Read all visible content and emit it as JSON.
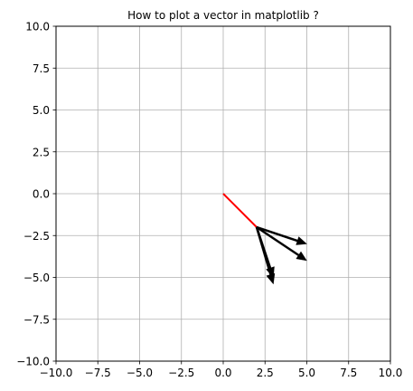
{
  "chart_data": {
    "type": "quiver",
    "title": "How to plot a vector in matplotlib ?",
    "xlabel": "",
    "ylabel": "",
    "xlim": [
      -10,
      10
    ],
    "ylim": [
      -10,
      10
    ],
    "grid": true,
    "x_ticks": [
      -10,
      -7.5,
      -5,
      -2.5,
      0,
      2.5,
      5,
      7.5,
      10
    ],
    "x_tick_labels": [
      "−10.0",
      "−7.5",
      "−5.0",
      "−2.5",
      "0.0",
      "2.5",
      "5.0",
      "7.5",
      "10.0"
    ],
    "y_ticks": [
      10,
      7.5,
      5,
      2.5,
      0,
      -2.5,
      -5,
      -7.5,
      -10
    ],
    "y_tick_labels": [
      "10.0",
      "7.5",
      "5.0",
      "2.5",
      "0.0",
      "−2.5",
      "−5.0",
      "−7.5",
      "−10.0"
    ],
    "line": {
      "x": [
        0,
        2
      ],
      "y": [
        0,
        -2
      ],
      "color": "#ff0000"
    },
    "vectors": [
      {
        "x0": 2,
        "y0": -2,
        "x1": 5,
        "y1": -3,
        "color": "#000000"
      },
      {
        "x0": 2,
        "y0": -2,
        "x1": 5,
        "y1": -4,
        "color": "#000000"
      },
      {
        "x0": 2,
        "y0": -2,
        "x1": 3,
        "y1": -5,
        "color": "#000000"
      },
      {
        "x0": 2,
        "y0": -2,
        "x1": 3,
        "y1": -5.4,
        "color": "#000000"
      }
    ]
  }
}
